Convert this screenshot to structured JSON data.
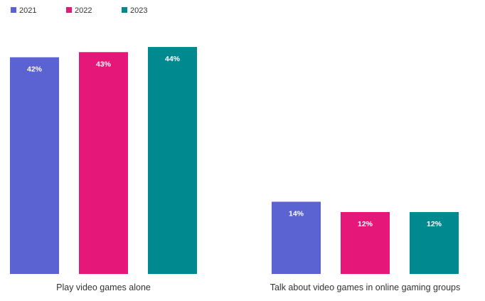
{
  "chart_data": {
    "type": "bar",
    "categories": [
      "Play video games alone",
      "Talk about video games in online gaming groups"
    ],
    "series": [
      {
        "name": "2021",
        "values": [
          42,
          14
        ],
        "color": "#5b63d3"
      },
      {
        "name": "2022",
        "values": [
          43,
          12
        ],
        "color": "#e5187a"
      },
      {
        "name": "2023",
        "values": [
          44,
          12
        ],
        "color": "#008a8f"
      }
    ],
    "value_suffix": "%",
    "ylim": [
      0,
      44
    ],
    "grid": false,
    "legend_position": "top-left",
    "title": "",
    "xlabel": "",
    "ylabel": ""
  }
}
